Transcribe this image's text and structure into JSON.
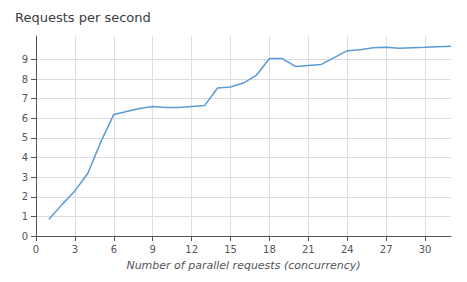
{
  "chart_data": {
    "type": "line",
    "title": "Requests per second",
    "xlabel": "Number of parallel requests (concurrency)",
    "x": [
      1,
      2,
      3,
      4,
      5,
      6,
      7,
      8,
      9,
      10,
      11,
      12,
      13,
      14,
      15,
      16,
      17,
      18,
      19,
      20,
      21,
      22,
      23,
      24,
      25,
      26,
      27,
      28,
      29,
      30,
      31,
      32
    ],
    "values": [
      0.85,
      1.6,
      2.3,
      3.2,
      4.8,
      6.2,
      6.35,
      6.5,
      6.6,
      6.55,
      6.55,
      6.6,
      6.65,
      7.55,
      7.6,
      7.8,
      8.2,
      9.05,
      9.05,
      8.65,
      8.7,
      8.75,
      9.1,
      9.45,
      9.5,
      9.6,
      9.62,
      9.58,
      9.6,
      9.62,
      9.65,
      9.68
    ],
    "color": "#5b9bd5",
    "xlim": [
      0,
      32
    ],
    "ylim": [
      0,
      10.2
    ],
    "xticks": [
      0,
      3,
      6,
      9,
      12,
      15,
      18,
      21,
      24,
      27,
      30
    ],
    "yticks": [
      0,
      1,
      2,
      3,
      4,
      5,
      6,
      7,
      8,
      9
    ],
    "grid": true
  }
}
